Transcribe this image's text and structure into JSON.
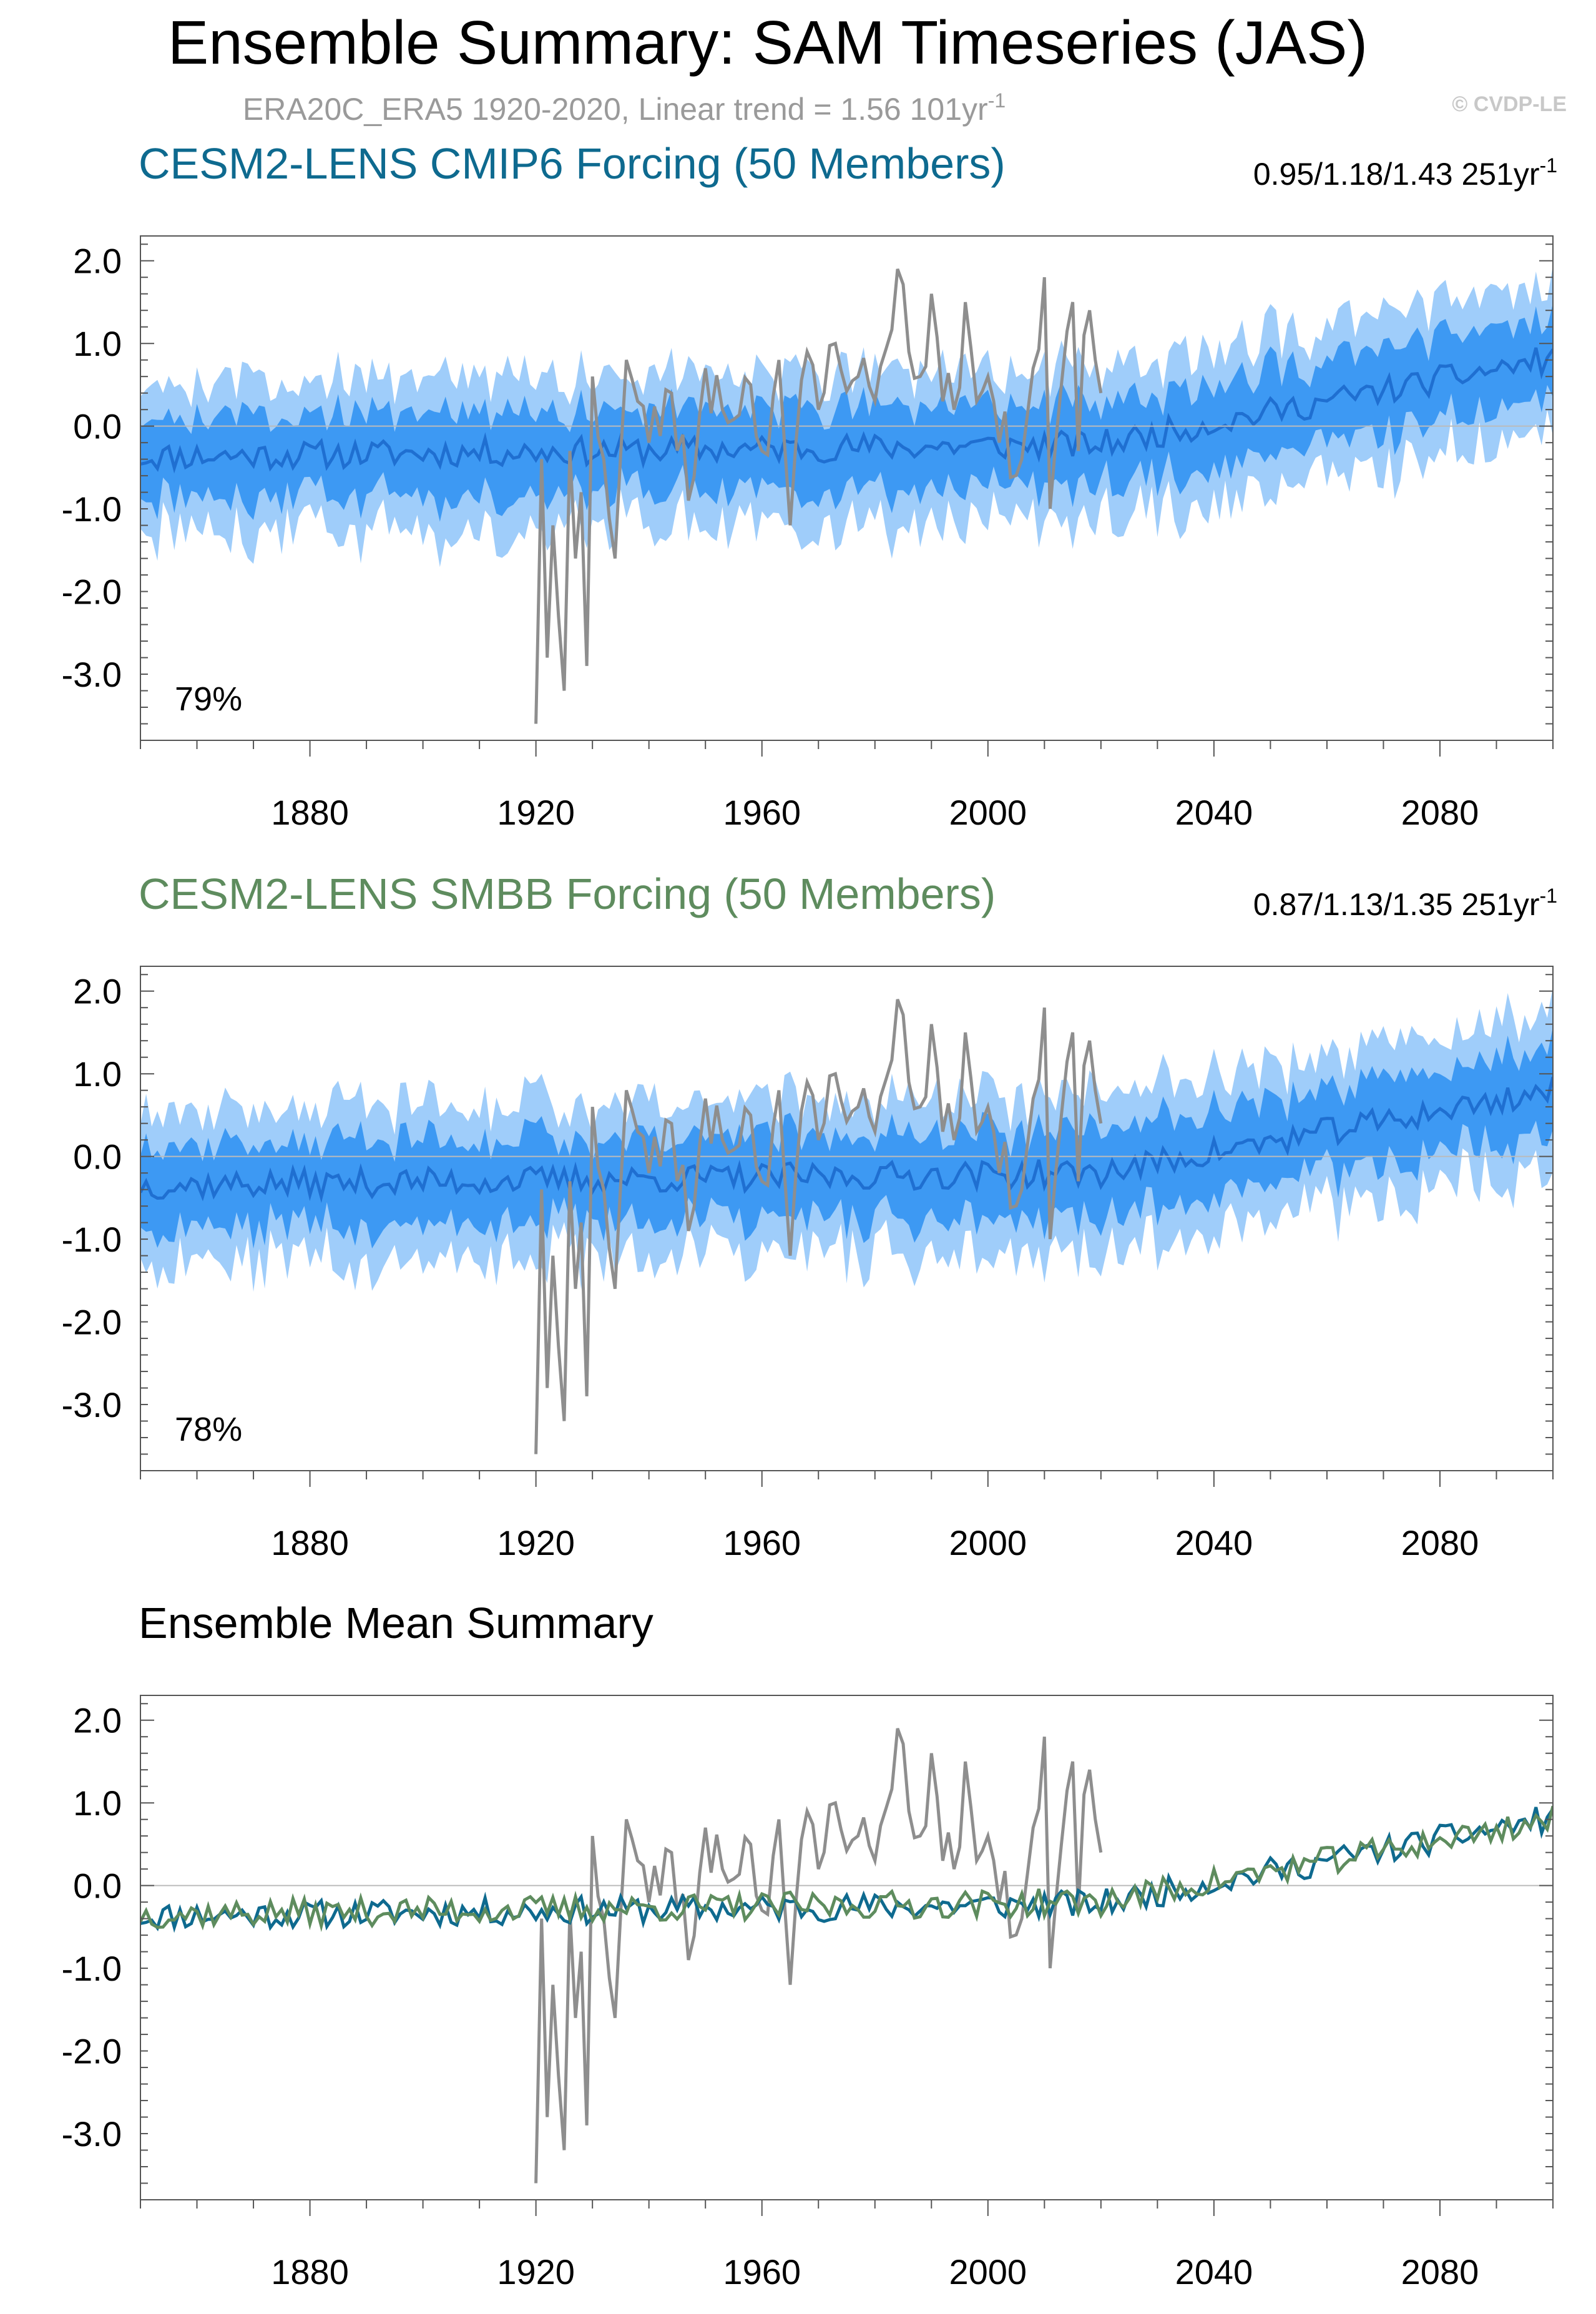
{
  "header": {
    "title": "Ensemble Summary: SAM Timeseries (JAS)",
    "obs_line_prefix": "ERA20C_ERA5 1920-2020, Linear trend = 1.56 101yr",
    "obs_line_sup": "-1",
    "watermark": "© CVDP-LE"
  },
  "colors": {
    "outer_band": "#9fcdfa",
    "inner_band": "#3d99f3",
    "ens_mean": "#1f6fd1",
    "obs": "#8e8e8e",
    "cmip6": "#0e6a8f",
    "smbb": "#5e8c5e"
  },
  "chart_data": [
    {
      "type": "line",
      "title": "CESM2-LENS CMIP6 Forcing (50 Members)",
      "trend_prefix": "0.95/1.18/1.43 251yr",
      "trend_sup": "-1",
      "pct_label": "79%",
      "xlim": [
        1850,
        2100
      ],
      "ylim": [
        -3.8,
        2.3
      ],
      "xticks": [
        "1880",
        "1920",
        "1960",
        "2000",
        "2040",
        "2080"
      ],
      "yticks": [
        "2.0",
        "1.0",
        "0.0",
        "-1.0",
        "-2.0",
        "-3.0"
      ],
      "series": [
        {
          "key": "ens_mean",
          "trend_start": -0.37,
          "trend_end": 0.82,
          "seed": 11
        },
        {
          "key": "obs",
          "x_start": 1920,
          "x_end": 2020,
          "anchors": [
            [
              1920,
              -3.6
            ],
            [
              1921,
              -0.4
            ],
            [
              1922,
              -2.8
            ],
            [
              1923,
              -1.2
            ],
            [
              1924,
              -2.3
            ],
            [
              1925,
              -3.2
            ],
            [
              1926,
              -0.3
            ],
            [
              1927,
              -1.6
            ],
            [
              1928,
              -0.8
            ],
            [
              1929,
              -2.9
            ],
            [
              1930,
              0.6
            ],
            [
              1932,
              -0.4
            ],
            [
              1934,
              -1.6
            ],
            [
              1936,
              0.8
            ],
            [
              1938,
              0.3
            ],
            [
              1940,
              -0.2
            ],
            [
              1944,
              0.4
            ],
            [
              1947,
              -0.9
            ],
            [
              1950,
              0.7
            ],
            [
              1953,
              0.2
            ],
            [
              1958,
              0.5
            ],
            [
              1960,
              -0.3
            ],
            [
              1963,
              0.8
            ],
            [
              1965,
              -1.2
            ],
            [
              1968,
              0.9
            ],
            [
              1970,
              0.2
            ],
            [
              1973,
              1.0
            ],
            [
              1977,
              0.6
            ],
            [
              1980,
              0.3
            ],
            [
              1984,
              1.9
            ],
            [
              1986,
              0.9
            ],
            [
              1988,
              0.6
            ],
            [
              1990,
              1.6
            ],
            [
              1992,
              0.3
            ],
            [
              1994,
              0.2
            ],
            [
              1996,
              1.5
            ],
            [
              1998,
              0.3
            ],
            [
              2000,
              0.6
            ],
            [
              2002,
              -0.2
            ],
            [
              2006,
              -0.4
            ],
            [
              2008,
              0.7
            ],
            [
              2010,
              1.8
            ],
            [
              2011,
              -1.0
            ],
            [
              2012,
              -0.2
            ],
            [
              2013,
              0.5
            ],
            [
              2015,
              1.5
            ],
            [
              2016,
              -0.3
            ],
            [
              2017,
              1.1
            ],
            [
              2018,
              1.4
            ],
            [
              2019,
              0.8
            ],
            [
              2020,
              0.4
            ]
          ],
          "seed": 23
        }
      ],
      "bands": {
        "inner_half": 0.5,
        "outer_half": 0.92
      }
    },
    {
      "type": "line",
      "title": "CESM2-LENS SMBB Forcing (50 Members)",
      "trend_prefix": "0.87/1.13/1.35 251yr",
      "trend_sup": "-1",
      "pct_label": "78%",
      "xlim": [
        1850,
        2100
      ],
      "ylim": [
        -3.8,
        2.3
      ],
      "xticks": [
        "1880",
        "1920",
        "1960",
        "2000",
        "2040",
        "2080"
      ],
      "yticks": [
        "2.0",
        "1.0",
        "0.0",
        "-1.0",
        "-2.0",
        "-3.0"
      ],
      "series": [
        {
          "key": "ens_mean",
          "trend_start": -0.35,
          "trend_end": 0.8,
          "seed": 37
        },
        {
          "key": "obs",
          "x_start": 1920,
          "x_end": 2020,
          "anchors": [
            [
              1920,
              -3.6
            ],
            [
              1921,
              -0.4
            ],
            [
              1922,
              -2.8
            ],
            [
              1923,
              -1.2
            ],
            [
              1924,
              -2.3
            ],
            [
              1925,
              -3.2
            ],
            [
              1926,
              -0.3
            ],
            [
              1927,
              -1.6
            ],
            [
              1928,
              -0.8
            ],
            [
              1929,
              -2.9
            ],
            [
              1930,
              0.6
            ],
            [
              1932,
              -0.4
            ],
            [
              1934,
              -1.6
            ],
            [
              1936,
              0.8
            ],
            [
              1938,
              0.3
            ],
            [
              1940,
              -0.2
            ],
            [
              1944,
              0.4
            ],
            [
              1947,
              -0.9
            ],
            [
              1950,
              0.7
            ],
            [
              1953,
              0.2
            ],
            [
              1958,
              0.5
            ],
            [
              1960,
              -0.3
            ],
            [
              1963,
              0.8
            ],
            [
              1965,
              -1.2
            ],
            [
              1968,
              0.9
            ],
            [
              1970,
              0.2
            ],
            [
              1973,
              1.0
            ],
            [
              1977,
              0.6
            ],
            [
              1980,
              0.3
            ],
            [
              1984,
              1.9
            ],
            [
              1986,
              0.9
            ],
            [
              1988,
              0.6
            ],
            [
              1990,
              1.6
            ],
            [
              1992,
              0.3
            ],
            [
              1994,
              0.2
            ],
            [
              1996,
              1.5
            ],
            [
              1998,
              0.3
            ],
            [
              2000,
              0.6
            ],
            [
              2002,
              -0.2
            ],
            [
              2006,
              -0.4
            ],
            [
              2008,
              0.7
            ],
            [
              2010,
              1.8
            ],
            [
              2011,
              -1.0
            ],
            [
              2012,
              -0.2
            ],
            [
              2013,
              0.5
            ],
            [
              2015,
              1.5
            ],
            [
              2016,
              -0.3
            ],
            [
              2017,
              1.1
            ],
            [
              2018,
              1.4
            ],
            [
              2019,
              0.8
            ],
            [
              2020,
              0.4
            ]
          ],
          "seed": 23
        }
      ],
      "bands": {
        "inner_half": 0.5,
        "outer_half": 0.92
      }
    },
    {
      "type": "line",
      "title": "Ensemble Mean Summary",
      "xlim": [
        1850,
        2100
      ],
      "ylim": [
        -3.8,
        2.3
      ],
      "xticks": [
        "1880",
        "1920",
        "1960",
        "2000",
        "2040",
        "2080"
      ],
      "yticks": [
        "2.0",
        "1.0",
        "0.0",
        "-1.0",
        "-2.0",
        "-3.0"
      ],
      "series": [
        {
          "key": "obs",
          "x_start": 1920,
          "x_end": 2020,
          "anchors": [
            [
              1920,
              -3.6
            ],
            [
              1921,
              -0.4
            ],
            [
              1922,
              -2.8
            ],
            [
              1923,
              -1.2
            ],
            [
              1924,
              -2.3
            ],
            [
              1925,
              -3.2
            ],
            [
              1926,
              -0.3
            ],
            [
              1927,
              -1.6
            ],
            [
              1928,
              -0.8
            ],
            [
              1929,
              -2.9
            ],
            [
              1930,
              0.6
            ],
            [
              1932,
              -0.4
            ],
            [
              1934,
              -1.6
            ],
            [
              1936,
              0.8
            ],
            [
              1938,
              0.3
            ],
            [
              1940,
              -0.2
            ],
            [
              1944,
              0.4
            ],
            [
              1947,
              -0.9
            ],
            [
              1950,
              0.7
            ],
            [
              1953,
              0.2
            ],
            [
              1958,
              0.5
            ],
            [
              1960,
              -0.3
            ],
            [
              1963,
              0.8
            ],
            [
              1965,
              -1.2
            ],
            [
              1968,
              0.9
            ],
            [
              1970,
              0.2
            ],
            [
              1973,
              1.0
            ],
            [
              1977,
              0.6
            ],
            [
              1980,
              0.3
            ],
            [
              1984,
              1.9
            ],
            [
              1986,
              0.9
            ],
            [
              1988,
              0.6
            ],
            [
              1990,
              1.6
            ],
            [
              1992,
              0.3
            ],
            [
              1994,
              0.2
            ],
            [
              1996,
              1.5
            ],
            [
              1998,
              0.3
            ],
            [
              2000,
              0.6
            ],
            [
              2002,
              -0.2
            ],
            [
              2006,
              -0.4
            ],
            [
              2008,
              0.7
            ],
            [
              2010,
              1.8
            ],
            [
              2011,
              -1.0
            ],
            [
              2012,
              -0.2
            ],
            [
              2013,
              0.5
            ],
            [
              2015,
              1.5
            ],
            [
              2016,
              -0.3
            ],
            [
              2017,
              1.1
            ],
            [
              2018,
              1.4
            ],
            [
              2019,
              0.8
            ],
            [
              2020,
              0.4
            ]
          ],
          "seed": 23
        },
        {
          "key": "cmip6",
          "trend_start": -0.37,
          "trend_end": 0.82,
          "seed": 11
        },
        {
          "key": "smbb",
          "trend_start": -0.35,
          "trend_end": 0.8,
          "seed": 37
        }
      ]
    }
  ]
}
